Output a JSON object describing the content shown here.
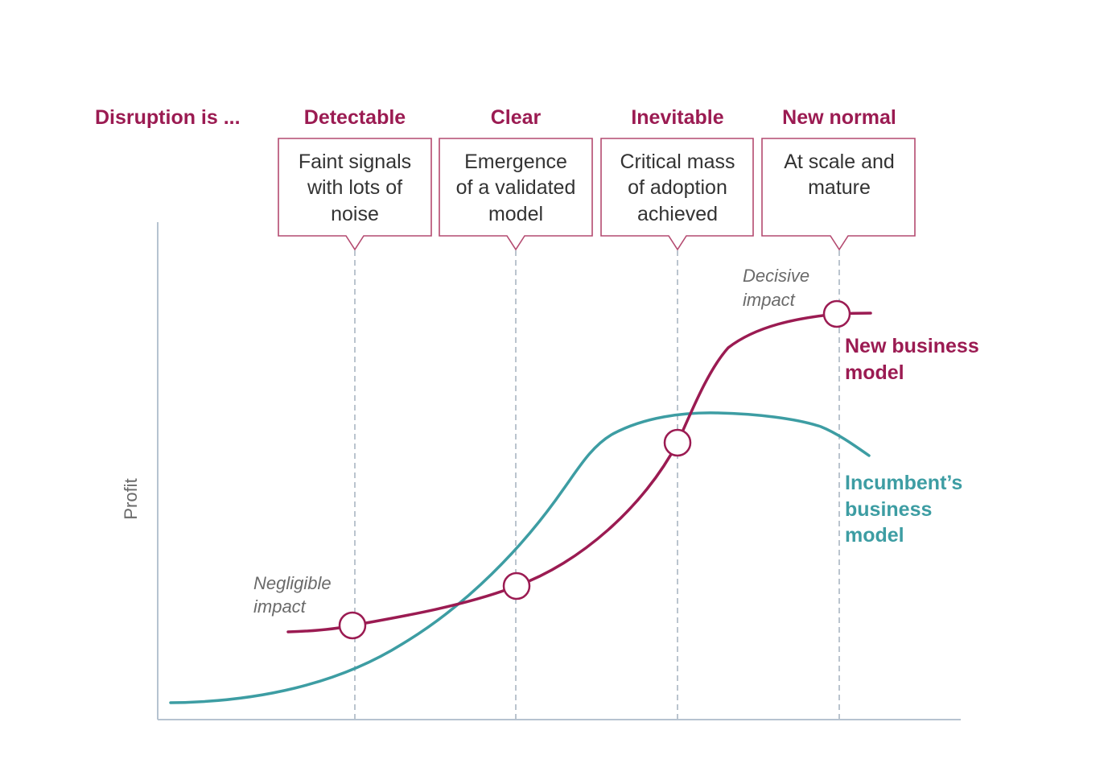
{
  "colors": {
    "accent": "#9b1b52",
    "teal": "#3d9da3",
    "axis": "#b6c3d0",
    "guide": "#aab5c2",
    "box_border": "#b44a70"
  },
  "header": {
    "lead": "Disruption is ...",
    "stages": [
      "Detectable",
      "Clear",
      "Inevitable",
      "New normal"
    ]
  },
  "boxes": [
    {
      "lines": [
        "Faint signals",
        "with lots of",
        "noise"
      ]
    },
    {
      "lines": [
        "Emergence",
        "of a validated",
        "model"
      ]
    },
    {
      "lines": [
        "Critical mass",
        "of adoption",
        "achieved"
      ]
    },
    {
      "lines": [
        "At scale and",
        "mature"
      ]
    }
  ],
  "annotations": {
    "negligible": [
      "Negligible",
      "impact"
    ],
    "decisive": [
      "Decisive",
      "impact"
    ]
  },
  "legend": {
    "new_model": [
      "New business",
      "model"
    ],
    "incumbent": [
      "Incumbent’s",
      "business",
      "model"
    ]
  },
  "axis": {
    "ylabel": "Profit"
  }
}
